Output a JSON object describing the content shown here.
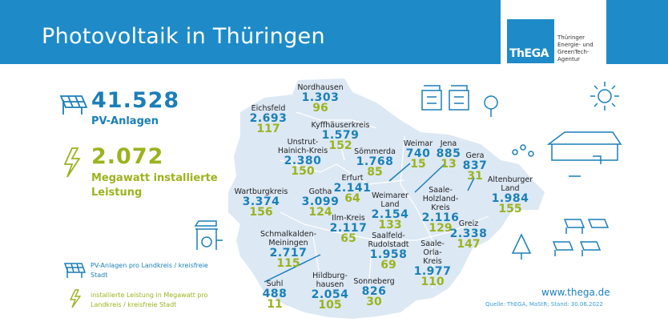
{
  "header": {
    "title": "Photovoltaik in Thüringen",
    "logo_abbr": "ThEGA",
    "logo_text": "Thüringer\nEnergie- und\nGreenTech-\nAgentur"
  },
  "summary": {
    "pv_count": "41.528",
    "pv_label": "PV-Anlagen",
    "mw_value": "2.072",
    "mw_label": "Megawatt installierte Leistung"
  },
  "legend": {
    "pv": "PV-Anlagen pro Landkreis / kreisfreie Stadt",
    "mw": "installierte Leistung in Megawatt pro Landkreis / kreisfreie Stadt"
  },
  "colors": {
    "header": "#1e8bc8",
    "pv": "#1a7fb8",
    "mw": "#9bb31e",
    "map": "#dce8f4"
  },
  "districts": [
    {
      "name": "Nordhausen",
      "pv": "1.303",
      "mw": "96"
    },
    {
      "name": "Eichsfeld",
      "pv": "2.693",
      "mw": "117"
    },
    {
      "name": "Kyffhäuserkreis",
      "pv": "1.579",
      "mw": "152"
    },
    {
      "name": "Unstrut-\nHainich-Kreis",
      "pv": "2.380",
      "mw": "150"
    },
    {
      "name": "Sömmerda",
      "pv": "1.768",
      "mw": "85"
    },
    {
      "name": "Weimar",
      "pv": "740",
      "mw": "15"
    },
    {
      "name": "Jena",
      "pv": "885",
      "mw": "13"
    },
    {
      "name": "Gera",
      "pv": "837",
      "mw": "31"
    },
    {
      "name": "Altenburger\nLand",
      "pv": "1.984",
      "mw": "155"
    },
    {
      "name": "Erfurt",
      "pv": "2.141",
      "mw": "64"
    },
    {
      "name": "Wartburgkreis",
      "pv": "3.374",
      "mw": "156"
    },
    {
      "name": "Gotha",
      "pv": "3.099",
      "mw": "124"
    },
    {
      "name": "Weimarer\nLand",
      "pv": "2.154",
      "mw": "133"
    },
    {
      "name": "Saale-\nHolzland-\nKreis",
      "pv": "2.116",
      "mw": "129"
    },
    {
      "name": "Greiz",
      "pv": "2.338",
      "mw": "147"
    },
    {
      "name": "Ilm-Kreis",
      "pv": "2.117",
      "mw": "65"
    },
    {
      "name": "Schmalkalden-\nMeiningen",
      "pv": "2.717",
      "mw": "115"
    },
    {
      "name": "Saalfeld-\nRudolstadt",
      "pv": "1.958",
      "mw": "69"
    },
    {
      "name": "Saale-\nOrla-\nKreis",
      "pv": "1.977",
      "mw": "110"
    },
    {
      "name": "Suhl",
      "pv": "488",
      "mw": "11"
    },
    {
      "name": "Hildburg-\nhausen",
      "pv": "2.054",
      "mw": "105"
    },
    {
      "name": "Sonneberg",
      "pv": "826",
      "mw": "30"
    }
  ],
  "footer": {
    "website": "www.thega.de",
    "source": "Quelle: ThEGA, MaStR; Stand: 30.06.2022"
  }
}
